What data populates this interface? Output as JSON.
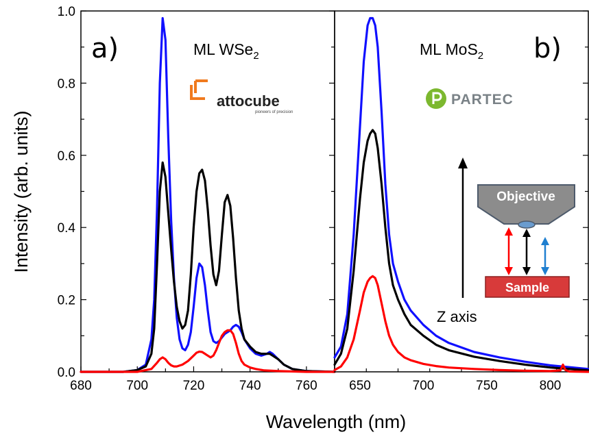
{
  "figure": {
    "ylabel": "Intensity (arb. units)",
    "xlabel": "Wavelength (nm)"
  },
  "panels": {
    "a": {
      "tag": "a)",
      "material": "ML WSe",
      "material_sub": "2",
      "logo_name": "attocube",
      "logo_tagline": "pioneers of precision"
    },
    "b": {
      "tag": "b)",
      "material": "ML MoS",
      "material_sub": "2",
      "logo_name": "PARTEC",
      "z_axis_label": "Z axis",
      "objective_label": "Objective",
      "sample_label": "Sample"
    }
  },
  "colors": {
    "blue": "#1010ff",
    "black": "#000000",
    "red": "#ff0000",
    "attocube_orange": "#f07a1e",
    "partec_green": "#7cb82f",
    "objective_gray": "#8c8c8c",
    "sample_red": "#d83a3a",
    "arrow_blue": "#1f7fd0"
  },
  "chart_data": [
    {
      "type": "line",
      "panel": "a",
      "xlim": [
        680,
        770
      ],
      "ylim": [
        0,
        1.0
      ],
      "xticks": [
        680,
        700,
        720,
        740,
        760
      ],
      "yticks": [
        0.0,
        0.2,
        0.4,
        0.6,
        0.8,
        1.0
      ],
      "ytick_labels": [
        "0.0",
        "0.2",
        "0.4",
        "0.6",
        "0.8",
        "1.0"
      ],
      "series": [
        {
          "color": "blue",
          "x": [
            680,
            695,
            700,
            703,
            705,
            706,
            707,
            708,
            709,
            710,
            711,
            712,
            713,
            714,
            715,
            716,
            717,
            718,
            719,
            720,
            721,
            722,
            723,
            724,
            725,
            726,
            727,
            728,
            729,
            730,
            731,
            732,
            733,
            734,
            735,
            736,
            737,
            738,
            740,
            742,
            744,
            746,
            747,
            748,
            750,
            752,
            755,
            760,
            770
          ],
          "y": [
            0.0,
            0.0,
            0.005,
            0.02,
            0.09,
            0.2,
            0.45,
            0.8,
            0.98,
            0.92,
            0.65,
            0.42,
            0.26,
            0.15,
            0.09,
            0.065,
            0.06,
            0.075,
            0.11,
            0.18,
            0.26,
            0.3,
            0.29,
            0.24,
            0.17,
            0.11,
            0.085,
            0.08,
            0.085,
            0.095,
            0.105,
            0.11,
            0.115,
            0.125,
            0.13,
            0.125,
            0.11,
            0.09,
            0.065,
            0.05,
            0.045,
            0.05,
            0.055,
            0.05,
            0.035,
            0.02,
            0.008,
            0.002,
            0.0
          ]
        },
        {
          "color": "black",
          "x": [
            680,
            695,
            700,
            703,
            705,
            706,
            707,
            708,
            709,
            710,
            711,
            712,
            713,
            714,
            715,
            716,
            717,
            718,
            719,
            720,
            721,
            722,
            723,
            724,
            725,
            726,
            727,
            728,
            729,
            730,
            731,
            732,
            733,
            734,
            735,
            736,
            737,
            738,
            740,
            742,
            744,
            746,
            747,
            748,
            750,
            752,
            755,
            760,
            770
          ],
          "y": [
            0.0,
            0.0,
            0.005,
            0.015,
            0.05,
            0.12,
            0.3,
            0.5,
            0.58,
            0.54,
            0.44,
            0.34,
            0.25,
            0.18,
            0.14,
            0.12,
            0.13,
            0.17,
            0.27,
            0.4,
            0.5,
            0.55,
            0.56,
            0.53,
            0.45,
            0.35,
            0.27,
            0.24,
            0.28,
            0.38,
            0.47,
            0.49,
            0.46,
            0.37,
            0.26,
            0.17,
            0.12,
            0.09,
            0.07,
            0.055,
            0.05,
            0.05,
            0.05,
            0.045,
            0.035,
            0.02,
            0.008,
            0.002,
            0.0
          ]
        },
        {
          "color": "red",
          "x": [
            680,
            700,
            705,
            707,
            708,
            709,
            710,
            711,
            712,
            713,
            714,
            716,
            718,
            720,
            721,
            722,
            723,
            724,
            725,
            726,
            727,
            728,
            729,
            730,
            731,
            732,
            733,
            734,
            735,
            736,
            737,
            738,
            740,
            742,
            745,
            750,
            760,
            770
          ],
          "y": [
            0.0,
            0.0,
            0.008,
            0.025,
            0.035,
            0.04,
            0.035,
            0.025,
            0.018,
            0.015,
            0.015,
            0.02,
            0.03,
            0.045,
            0.053,
            0.056,
            0.055,
            0.05,
            0.045,
            0.04,
            0.045,
            0.06,
            0.08,
            0.1,
            0.11,
            0.115,
            0.115,
            0.105,
            0.08,
            0.05,
            0.03,
            0.02,
            0.012,
            0.008,
            0.004,
            0.002,
            0.0,
            0.0
          ]
        }
      ]
    },
    {
      "type": "line",
      "panel": "b",
      "xlim": [
        630,
        830
      ],
      "ylim": [
        0,
        1.0
      ],
      "xticks": [
        650,
        700,
        750,
        800
      ],
      "series": [
        {
          "color": "blue",
          "x": [
            630,
            635,
            640,
            645,
            650,
            653,
            656,
            658,
            660,
            662,
            664,
            667,
            670,
            673,
            676,
            680,
            685,
            690,
            700,
            710,
            720,
            740,
            760,
            780,
            800,
            830
          ],
          "y": [
            0.04,
            0.07,
            0.16,
            0.38,
            0.68,
            0.86,
            0.96,
            0.98,
            0.98,
            0.96,
            0.9,
            0.72,
            0.52,
            0.38,
            0.3,
            0.25,
            0.2,
            0.17,
            0.13,
            0.1,
            0.08,
            0.055,
            0.04,
            0.028,
            0.018,
            0.008
          ]
        },
        {
          "color": "black",
          "x": [
            630,
            635,
            640,
            645,
            650,
            653,
            656,
            658,
            660,
            662,
            664,
            667,
            670,
            673,
            676,
            680,
            685,
            690,
            700,
            710,
            720,
            740,
            760,
            780,
            800,
            830
          ],
          "y": [
            0.02,
            0.05,
            0.12,
            0.28,
            0.48,
            0.58,
            0.64,
            0.66,
            0.67,
            0.66,
            0.62,
            0.52,
            0.4,
            0.3,
            0.24,
            0.2,
            0.16,
            0.13,
            0.1,
            0.075,
            0.06,
            0.042,
            0.03,
            0.02,
            0.012,
            0.004
          ]
        },
        {
          "color": "red",
          "x": [
            630,
            635,
            640,
            645,
            650,
            653,
            656,
            658,
            660,
            662,
            664,
            667,
            670,
            673,
            676,
            680,
            685,
            690,
            700,
            710,
            720,
            740,
            760,
            780,
            800,
            808,
            810,
            812,
            815,
            830
          ],
          "y": [
            0.005,
            0.015,
            0.04,
            0.09,
            0.17,
            0.22,
            0.25,
            0.26,
            0.265,
            0.26,
            0.24,
            0.19,
            0.14,
            0.1,
            0.075,
            0.055,
            0.04,
            0.032,
            0.022,
            0.016,
            0.012,
            0.008,
            0.005,
            0.003,
            0.002,
            0.004,
            0.02,
            0.005,
            0.001,
            0.0
          ]
        }
      ]
    }
  ]
}
